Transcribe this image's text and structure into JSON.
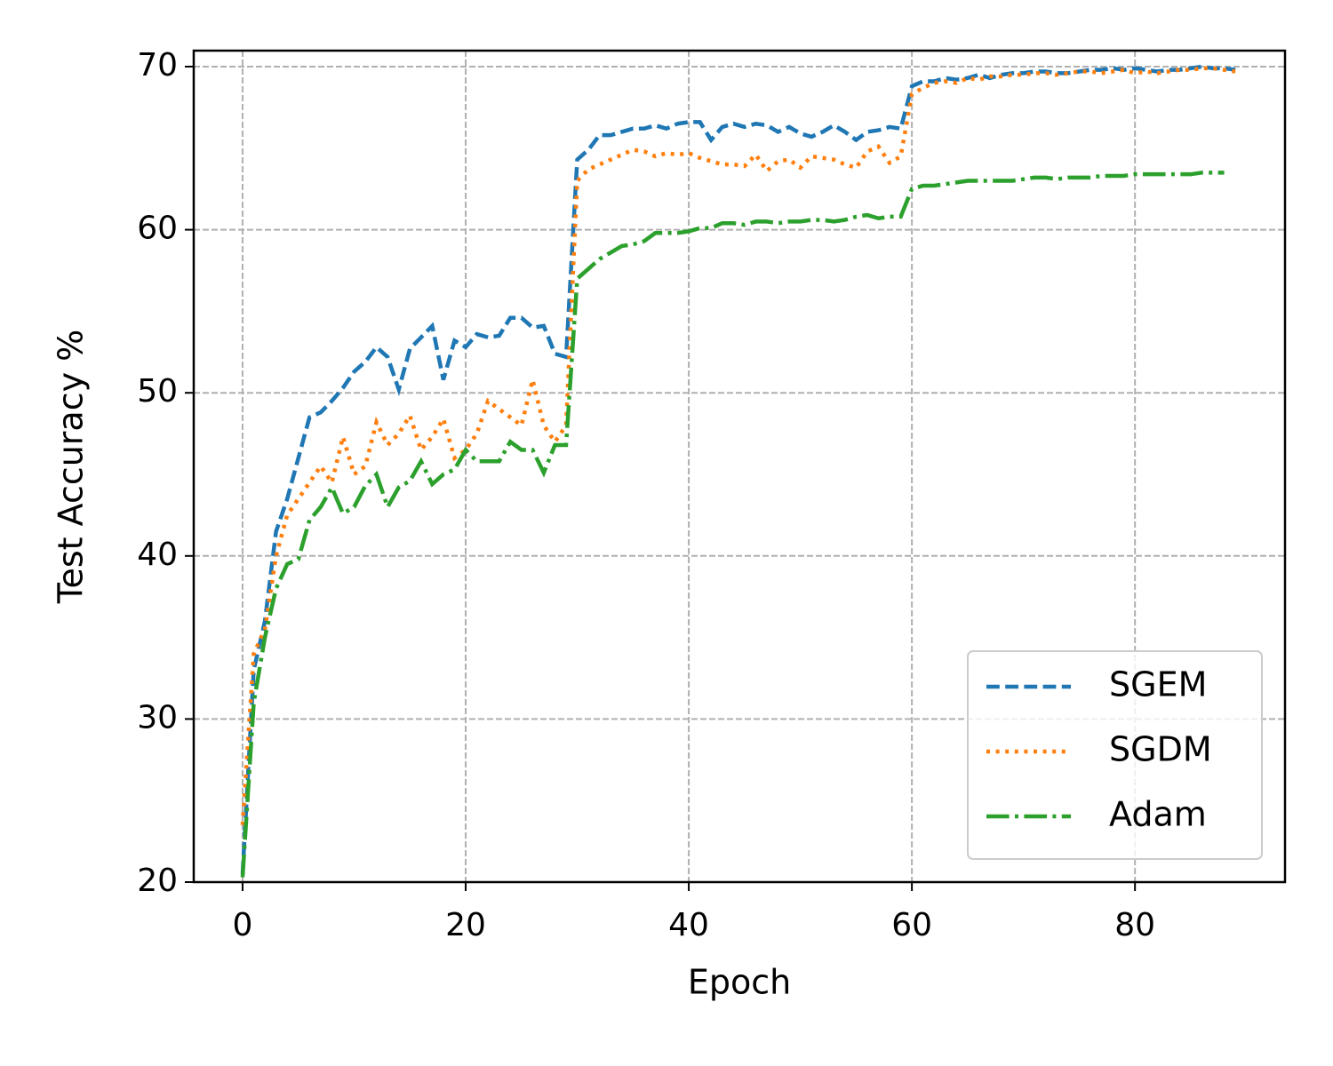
{
  "chart_data": {
    "type": "line",
    "xlabel": "Epoch",
    "ylabel": "Test Accuracy %",
    "x": [
      0,
      1,
      2,
      3,
      4,
      5,
      6,
      7,
      8,
      9,
      10,
      11,
      12,
      13,
      14,
      15,
      16,
      17,
      18,
      19,
      20,
      21,
      22,
      23,
      24,
      25,
      26,
      27,
      28,
      29,
      30,
      31,
      32,
      33,
      34,
      35,
      36,
      37,
      38,
      39,
      40,
      41,
      42,
      43,
      44,
      45,
      46,
      47,
      48,
      49,
      50,
      51,
      52,
      53,
      54,
      55,
      56,
      57,
      58,
      59,
      60,
      61,
      62,
      63,
      64,
      65,
      66,
      67,
      68,
      69,
      70,
      71,
      72,
      73,
      74,
      75,
      76,
      77,
      78,
      79,
      80,
      81,
      82,
      83,
      84,
      85,
      86,
      87,
      88,
      89
    ],
    "series": [
      {
        "name": "SGEM",
        "color": "#1f77b4",
        "linestyle": "dashed",
        "values": [
          20.5,
          33,
          36,
          41.5,
          43.5,
          46,
          48.5,
          48.8,
          49.5,
          50.3,
          51.3,
          51.9,
          52.8,
          52.2,
          50.2,
          52.7,
          53.4,
          54.1,
          50.8,
          53.2,
          52.8,
          53.6,
          53.4,
          53.5,
          54.6,
          54.6,
          54,
          54.1,
          52.4,
          52.2,
          64.3,
          64.9,
          65.8,
          65.8,
          66,
          66.2,
          66.2,
          66.4,
          66.2,
          66.5,
          66.6,
          66.6,
          65.5,
          66.3,
          66.5,
          66.3,
          66.5,
          66.4,
          66,
          66.3,
          65.9,
          65.7,
          66,
          66.4,
          66,
          65.5,
          66,
          66.1,
          66.3,
          66.2,
          68.8,
          69.1,
          69.1,
          69.3,
          69.2,
          69.3,
          69.5,
          69.3,
          69.5,
          69.6,
          69.6,
          69.7,
          69.7,
          69.6,
          69.6,
          69.7,
          69.8,
          69.8,
          69.9,
          69.8,
          69.9,
          69.8,
          69.7,
          69.8,
          69.8,
          69.9,
          70,
          69.9,
          69.9,
          69.8
        ]
      },
      {
        "name": "SGDM",
        "color": "#ff7f0e",
        "linestyle": "dotted",
        "values": [
          23.5,
          34,
          35.5,
          40,
          42.5,
          43.5,
          44.5,
          45.5,
          44.5,
          47.3,
          45,
          45.5,
          48.2,
          46.8,
          47.5,
          48.6,
          46.5,
          47.3,
          48.4,
          46,
          46.5,
          47.5,
          49.5,
          49,
          48.5,
          48,
          50.8,
          48,
          47,
          48,
          63,
          63.7,
          64,
          64.3,
          64.6,
          64.9,
          64.8,
          64.5,
          64.7,
          64.6,
          64.7,
          64.4,
          64.2,
          64,
          64,
          63.9,
          64.6,
          63.6,
          64.2,
          64.3,
          63.8,
          64.5,
          64.4,
          64.3,
          64,
          63.8,
          64.8,
          65.1,
          64.1,
          64.5,
          68.3,
          68.7,
          69,
          69.1,
          69,
          69.3,
          69.2,
          69.4,
          69.4,
          69.5,
          69.5,
          69.6,
          69.6,
          69.5,
          69.6,
          69.7,
          69.7,
          69.6,
          69.7,
          69.8,
          69.6,
          69.7,
          69.6,
          69.7,
          69.8,
          69.8,
          69.9,
          69.9,
          69.8,
          69.7
        ]
      },
      {
        "name": "Adam",
        "color": "#2ca02c",
        "linestyle": "dashdot",
        "values": [
          20.3,
          31,
          35,
          38,
          39.5,
          39.8,
          42.2,
          43,
          44.2,
          42.6,
          43,
          44.3,
          45,
          43,
          44.2,
          44.6,
          45.8,
          44.4,
          45,
          45.3,
          46.5,
          45.8,
          45.8,
          45.8,
          47,
          46.5,
          46.5,
          45.1,
          46.8,
          46.8,
          57,
          57.6,
          58.2,
          58.6,
          59,
          59.1,
          59.3,
          59.8,
          59.8,
          59.8,
          59.9,
          60.1,
          60.1,
          60.4,
          60.4,
          60.3,
          60.5,
          60.5,
          60.4,
          60.5,
          60.5,
          60.6,
          60.6,
          60.5,
          60.6,
          60.8,
          60.9,
          60.7,
          60.8,
          60.8,
          62.5,
          62.7,
          62.7,
          62.8,
          62.9,
          63,
          63,
          63,
          63,
          63,
          63.1,
          63.2,
          63.2,
          63.1,
          63.2,
          63.2,
          63.2,
          63.3,
          63.3,
          63.3,
          63.4,
          63.4,
          63.4,
          63.4,
          63.4,
          63.4,
          63.5,
          63.5,
          63.5,
          null
        ]
      }
    ],
    "xlim": [
      -4.38,
      93.45
    ],
    "ylim": [
      20,
      70.98
    ],
    "xticks": [
      0,
      20,
      40,
      60,
      80
    ],
    "yticks": [
      20,
      30,
      40,
      50,
      60,
      70
    ],
    "grid": true,
    "legend": "lower right"
  }
}
